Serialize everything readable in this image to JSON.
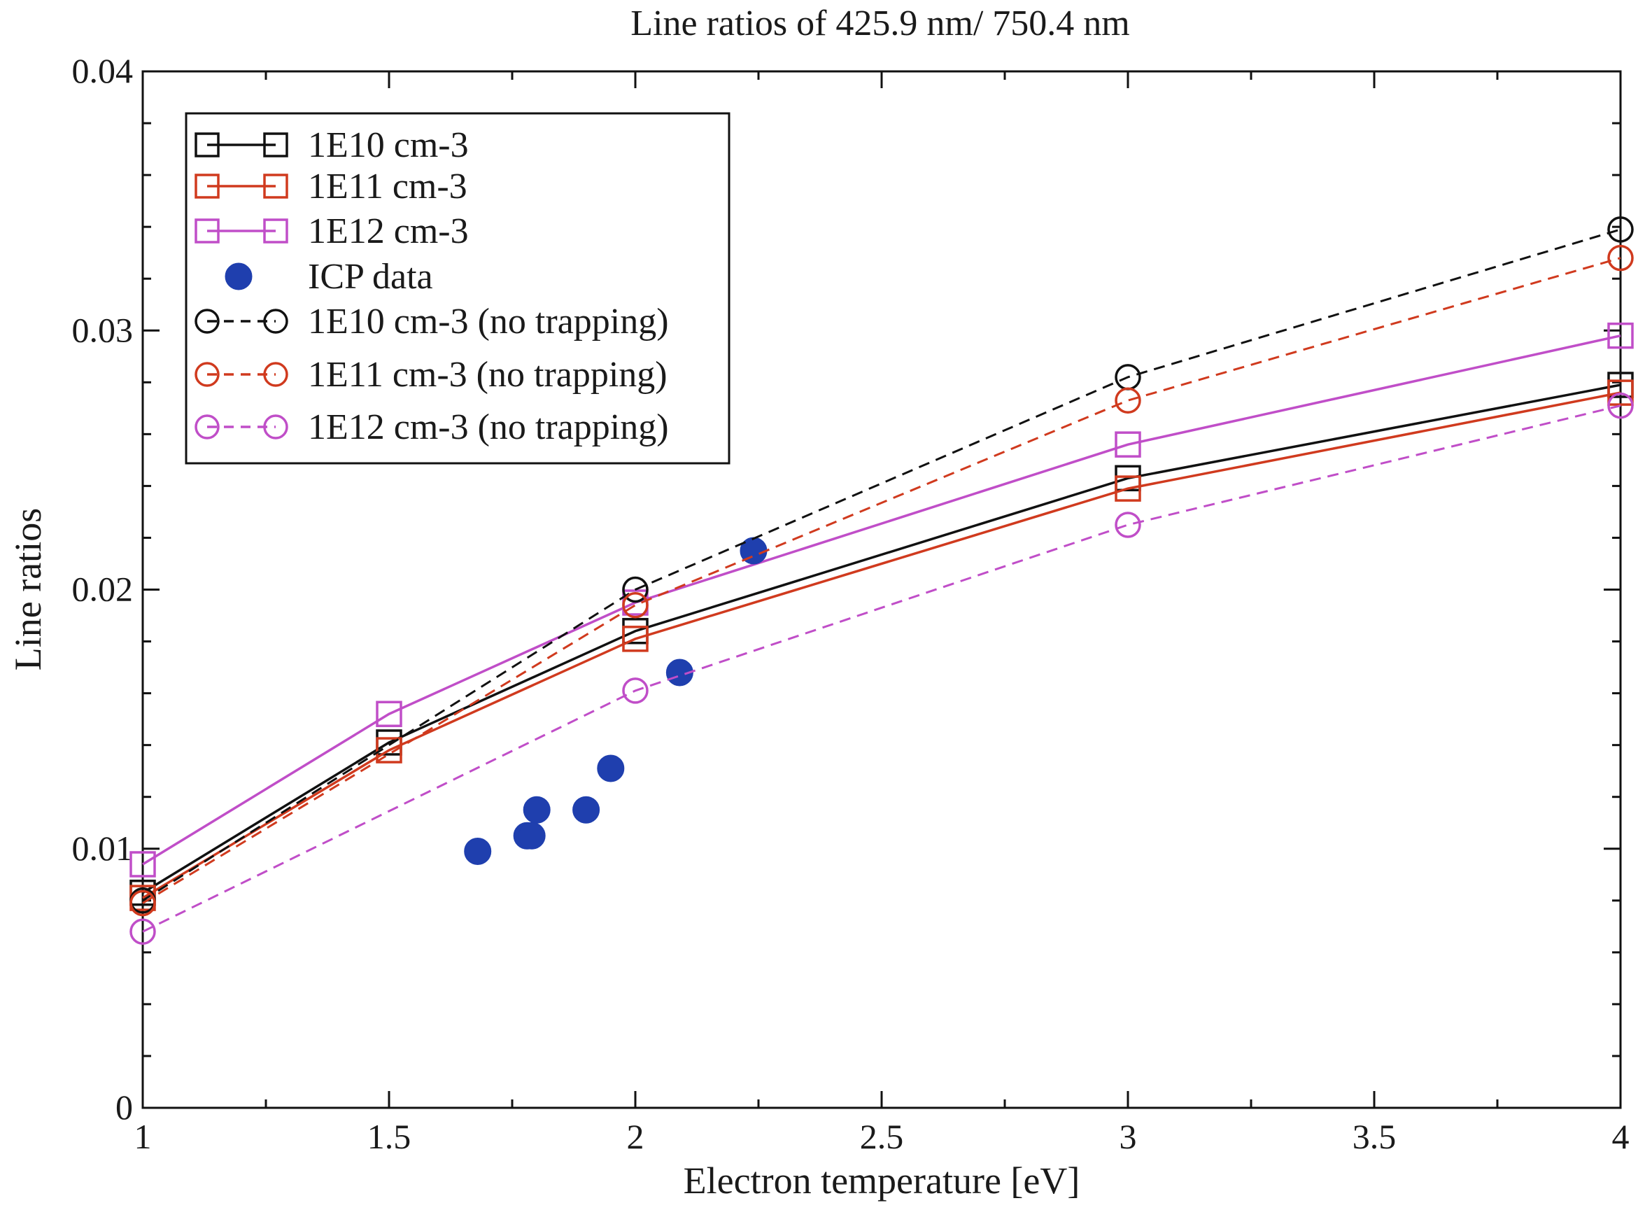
{
  "chart_data": {
    "type": "line",
    "title": "Line ratios of 425.9 nm/ 750.4 nm",
    "xlabel": "Electron temperature [eV]",
    "ylabel": "Line ratios",
    "xlim": [
      1,
      4
    ],
    "ylim": [
      0,
      0.04
    ],
    "x_ticks": [
      1,
      1.5,
      2,
      2.5,
      3,
      3.5,
      4
    ],
    "x_tick_labels": [
      "1",
      "1.5",
      "2",
      "2.5",
      "3",
      "3.5",
      "4"
    ],
    "y_ticks": [
      0,
      0.01,
      0.02,
      0.03,
      0.04
    ],
    "y_tick_labels": [
      "0",
      "0.01",
      "0.02",
      "0.03",
      "0.04"
    ],
    "grid": false,
    "legend_position": "top-left",
    "series": [
      {
        "name": "1E10 cm-3",
        "color": "#111111",
        "marker": "square",
        "dashed": false,
        "x": [
          1,
          1.5,
          2,
          3,
          4
        ],
        "values": [
          0.0083,
          0.0141,
          0.0184,
          0.0243,
          0.0279
        ]
      },
      {
        "name": "1E11 cm-3",
        "color": "#d03a1e",
        "marker": "square",
        "dashed": false,
        "x": [
          1,
          1.5,
          2,
          3,
          4
        ],
        "values": [
          0.0081,
          0.0138,
          0.0181,
          0.0239,
          0.0276
        ]
      },
      {
        "name": "1E12 cm-3",
        "color": "#c04ec8",
        "marker": "square",
        "dashed": false,
        "x": [
          1,
          1.5,
          2,
          3,
          4
        ],
        "values": [
          0.0094,
          0.0152,
          0.0195,
          0.0256,
          0.0298
        ]
      },
      {
        "name": "ICP data",
        "color": "#1f3fae",
        "marker": "filled-circle",
        "dashed": false,
        "no_line": true,
        "x": [
          1.68,
          1.78,
          1.79,
          1.8,
          1.9,
          1.95,
          2.09,
          2.24
        ],
        "values": [
          0.0099,
          0.0105,
          0.0105,
          0.0115,
          0.0115,
          0.0131,
          0.0168,
          0.0215
        ]
      },
      {
        "name": "1E10 cm-3 (no trapping)",
        "color": "#111111",
        "marker": "circle",
        "dashed": true,
        "x": [
          1,
          2,
          3,
          4
        ],
        "values": [
          0.008,
          0.02,
          0.0282,
          0.0339
        ]
      },
      {
        "name": "1E11 cm-3 (no trapping)",
        "color": "#d03a1e",
        "marker": "circle",
        "dashed": true,
        "x": [
          1,
          2,
          3,
          4
        ],
        "values": [
          0.0079,
          0.0194,
          0.0273,
          0.0328
        ]
      },
      {
        "name": "1E12 cm-3 (no trapping)",
        "color": "#c04ec8",
        "marker": "circle",
        "dashed": true,
        "x": [
          1,
          2,
          3,
          4
        ],
        "values": [
          0.0068,
          0.0161,
          0.0225,
          0.0271
        ]
      }
    ]
  }
}
